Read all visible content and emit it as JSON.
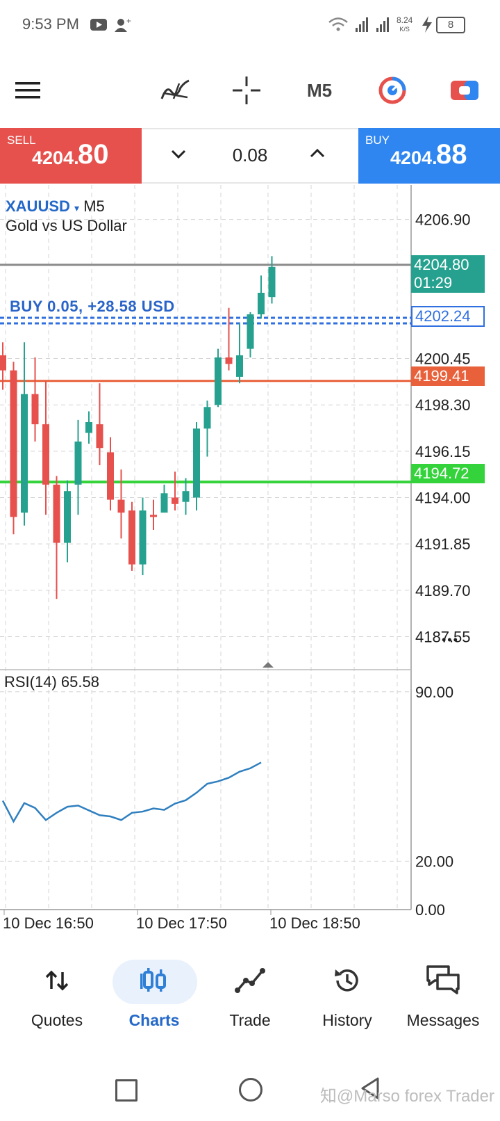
{
  "status_bar": {
    "time": "9:53 PM",
    "net_speed": "8.24",
    "net_unit": "K/S",
    "battery": "8"
  },
  "toolbar": {
    "timeframe": "M5",
    "icons": [
      "menu-icon",
      "indicators-icon",
      "crosshair-icon",
      "timeframe",
      "objects-icon",
      "trade-panel-icon"
    ]
  },
  "trade_bar": {
    "sell_label": "SELL",
    "sell_price_small": "4204.",
    "sell_price_big": "80",
    "lot": "0.08",
    "buy_label": "BUY",
    "buy_price_small": "4204.",
    "buy_price_big": "88",
    "colors": {
      "sell": "#e6514d",
      "buy": "#2f86f0"
    }
  },
  "chart": {
    "symbol": "XAUUSD",
    "symbol_caret": "▾",
    "timeframe": "M5",
    "description": "Gold vs US Dollar",
    "position_label": "BUY 0.05,  +28.58 USD",
    "more_label": "•••",
    "rsi_title": "RSI(14) 65.58",
    "price_labels": {
      "current_price": "4204.80",
      "countdown": "01:29",
      "position_price": "4202.24",
      "sl_price": "4199.41",
      "tp_price": "4194.72"
    },
    "colors": {
      "bull": "#26a18f",
      "bear": "#e6514d",
      "position_line": "#2f6fe0",
      "red_line": "#e8613a",
      "green_line": "#35d33b",
      "price_line": "#8a8a8a",
      "rsi_line": "#2f7fbf"
    }
  },
  "chart_data": [
    {
      "type": "candlestick",
      "title": "XAUUSD M5",
      "ylim": [
        4186.5,
        4208.5
      ],
      "y_ticks": [
        "4206.90",
        "4200.45",
        "4198.30",
        "4196.15",
        "4194.00",
        "4191.85",
        "4189.70",
        "4187.55"
      ],
      "x_labels": [
        "10 Dec 16:50",
        "10 Dec 17:50",
        "10 Dec 18:50"
      ],
      "horizontal_lines": [
        4204.8,
        4202.24,
        4199.41,
        4194.72
      ],
      "candles": [
        {
          "o": 4200.6,
          "h": 4201.2,
          "c": 4199.9,
          "l": 4199.0
        },
        {
          "o": 4199.9,
          "h": 4200.3,
          "c": 4193.1,
          "l": 4192.3
        },
        {
          "o": 4193.3,
          "h": 4201.2,
          "c": 4198.8,
          "l": 4192.7
        },
        {
          "o": 4198.8,
          "h": 4200.5,
          "c": 4197.4,
          "l": 4196.6
        },
        {
          "o": 4197.4,
          "h": 4199.4,
          "c": 4194.6,
          "l": 4193.2
        },
        {
          "o": 4194.6,
          "h": 4195.0,
          "c": 4191.9,
          "l": 4189.3
        },
        {
          "o": 4191.9,
          "h": 4194.8,
          "c": 4194.3,
          "l": 4191.0
        },
        {
          "o": 4194.6,
          "h": 4197.6,
          "c": 4196.6,
          "l": 4193.2
        },
        {
          "o": 4197.0,
          "h": 4198.0,
          "c": 4197.5,
          "l": 4196.5
        },
        {
          "o": 4197.4,
          "h": 4199.3,
          "c": 4196.3,
          "l": 4195.5
        },
        {
          "o": 4196.1,
          "h": 4196.8,
          "c": 4193.9,
          "l": 4193.4
        },
        {
          "o": 4193.9,
          "h": 4195.3,
          "c": 4193.3,
          "l": 4192.1
        },
        {
          "o": 4193.4,
          "h": 4193.8,
          "c": 4190.9,
          "l": 4190.6
        },
        {
          "o": 4190.9,
          "h": 4194.0,
          "c": 4193.4,
          "l": 4190.4
        },
        {
          "o": 4193.2,
          "h": 4193.9,
          "c": 4193.1,
          "l": 4192.5
        },
        {
          "o": 4193.3,
          "h": 4194.6,
          "c": 4194.2,
          "l": 4193.4
        },
        {
          "o": 4194.0,
          "h": 4195.2,
          "c": 4193.7,
          "l": 4193.4
        },
        {
          "o": 4193.8,
          "h": 4194.9,
          "c": 4194.3,
          "l": 4193.2
        },
        {
          "o": 4194.0,
          "h": 4197.5,
          "c": 4197.2,
          "l": 4193.4
        },
        {
          "o": 4197.2,
          "h": 4198.5,
          "c": 4198.2,
          "l": 4195.9
        },
        {
          "o": 4198.3,
          "h": 4200.9,
          "c": 4200.5,
          "l": 4198.2
        },
        {
          "o": 4200.5,
          "h": 4202.8,
          "c": 4200.2,
          "l": 4199.9
        },
        {
          "o": 4199.6,
          "h": 4202.1,
          "c": 4200.6,
          "l": 4199.3
        },
        {
          "o": 4200.9,
          "h": 4202.6,
          "c": 4202.5,
          "l": 4200.5
        },
        {
          "o": 4202.5,
          "h": 4204.3,
          "c": 4203.5,
          "l": 4202.3
        },
        {
          "o": 4203.3,
          "h": 4205.2,
          "c": 4204.7,
          "l": 4203.0
        }
      ]
    },
    {
      "type": "line",
      "title": "RSI(14) 65.58",
      "ylim": [
        0,
        100
      ],
      "y_ticks": [
        "90.00",
        "20.00",
        "0.00"
      ],
      "series": [
        {
          "name": "RSI(14)",
          "values": [
            45.0,
            36.4,
            44.0,
            42.0,
            37.0,
            40.0,
            42.5,
            43.0,
            41.0,
            39.0,
            38.5,
            37.0,
            40.0,
            40.5,
            41.8,
            41.2,
            43.8,
            45.2,
            48.3,
            52.0,
            53.0,
            54.5,
            57.0,
            58.4,
            60.8
          ]
        }
      ]
    }
  ],
  "bottom_nav": {
    "items": [
      {
        "label": "Quotes",
        "icon": "quotes-icon"
      },
      {
        "label": "Charts",
        "icon": "charts-icon",
        "active": true
      },
      {
        "label": "Trade",
        "icon": "trade-icon"
      },
      {
        "label": "History",
        "icon": "history-icon"
      },
      {
        "label": "Messages",
        "icon": "messages-icon"
      }
    ]
  },
  "watermark": "知@Marso forex Trader"
}
